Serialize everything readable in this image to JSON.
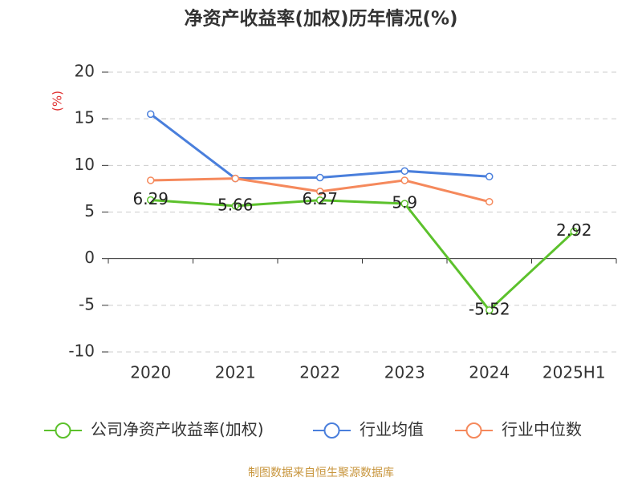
{
  "chart_data": {
    "type": "line",
    "title": "净资产收益率(加权)历年情况(%)",
    "y_label": "(%)",
    "source": "制图数据来自恒生聚源数据库",
    "categories": [
      "2020",
      "2021",
      "2022",
      "2023",
      "2024",
      "2025H1"
    ],
    "series": [
      {
        "name": "公司净资产收益率(加权)",
        "color": "#5cc12c",
        "values": [
          6.29,
          5.66,
          6.27,
          5.9,
          -5.52,
          2.92
        ],
        "show_labels": true
      },
      {
        "name": "行业均值",
        "color": "#4a7fdc",
        "values": [
          15.5,
          8.6,
          8.7,
          9.4,
          8.8,
          null
        ],
        "show_labels": false
      },
      {
        "name": "行业中位数",
        "color": "#f5895c",
        "values": [
          8.4,
          8.6,
          7.2,
          8.4,
          6.1,
          null
        ],
        "show_labels": false
      }
    ],
    "ylim": [
      -10,
      20
    ],
    "yticks": [
      -10,
      -5,
      0,
      5,
      10,
      15,
      20
    ],
    "grid": true,
    "legend": "bottom"
  }
}
